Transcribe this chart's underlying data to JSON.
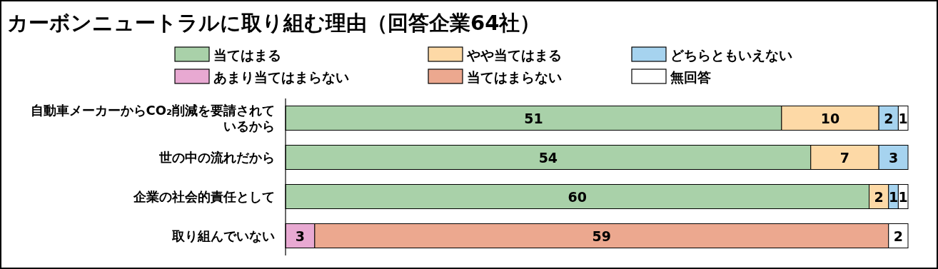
{
  "chart_data": {
    "type": "bar",
    "orientation": "horizontal",
    "stacked": true,
    "title": "カーボンニュートラルに取り組む理由（回答企業64社）",
    "categories": [
      "自動車メーカーからCO₂削減を要請されているから",
      "世の中の流れだから",
      "企業の社会的責任として",
      "取り組んでいない"
    ],
    "series": [
      {
        "name": "当てはまる",
        "color": "#a9d1a9",
        "values": [
          51,
          54,
          60,
          null
        ]
      },
      {
        "name": "やや当てはまる",
        "color": "#fdd9a6",
        "values": [
          10,
          7,
          2,
          null
        ]
      },
      {
        "name": "どちらともいえない",
        "color": "#a6d3ef",
        "values": [
          2,
          3,
          1,
          null
        ]
      },
      {
        "name": "あまり当てはまらない",
        "color": "#e8a9d2",
        "values": [
          null,
          null,
          null,
          3
        ]
      },
      {
        "name": "当てはまらない",
        "color": "#eca88f",
        "values": [
          null,
          null,
          null,
          59
        ]
      },
      {
        "name": "無回答",
        "color": "#ffffff",
        "values": [
          1,
          null,
          1,
          2
        ]
      }
    ],
    "data_labels": true,
    "legend": "top"
  }
}
